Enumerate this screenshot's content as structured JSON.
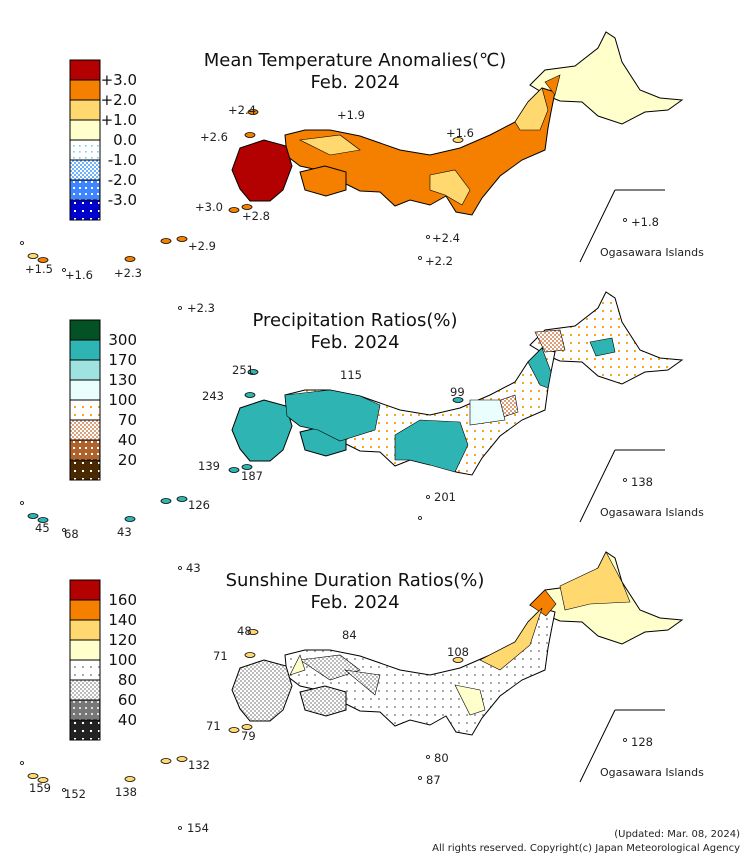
{
  "panels": [
    {
      "title_line1": "Mean Temperature Anomalies(℃)",
      "title_line2": "Feb. 2024",
      "legend": {
        "labels": [
          "+3.0",
          "+2.0",
          "+1.0",
          "0.0",
          "-1.0",
          "-2.0",
          "-3.0"
        ],
        "colors": [
          "#b30000",
          "#f58000",
          "#ffd870",
          "#ffffcc",
          "#e8f8ff",
          "#9cc8ff",
          "#3e86ff",
          "#0000cc"
        ],
        "patterns": [
          "solid",
          "solid",
          "solid",
          "solid",
          "dots-light",
          "check",
          "dots",
          "dots-dark"
        ]
      },
      "values": [
        "+2.4",
        "+1.9",
        "+2.6",
        "+1.6",
        "+3.0",
        "+2.8",
        "+1.8",
        "+2.4",
        "+2.2",
        "+2.9",
        "+1.5",
        "+1.6",
        "+2.3",
        "+2.3"
      ],
      "ogasawara": "Ogasawara Islands"
    },
    {
      "title_line1": "Precipitation Ratios(%)",
      "title_line2": "Feb. 2024",
      "legend": {
        "labels": [
          "300",
          "170",
          "130",
          "100",
          "70",
          "40",
          "20"
        ],
        "colors": [
          "#035125",
          "#2eb4b3",
          "#9fe3e0",
          "#eafffd",
          "#f5a623",
          "#d9a07a",
          "#b0622c",
          "#4a2800"
        ],
        "patterns": [
          "solid",
          "solid",
          "solid",
          "solid",
          "dots-light",
          "check",
          "dots",
          "dots-dark"
        ]
      },
      "values": [
        "251",
        "115",
        "243",
        "99",
        "139",
        "187",
        "138",
        "201",
        "126",
        "45",
        "68",
        "43",
        "43"
      ],
      "ogasawara": "Ogasawara Islands"
    },
    {
      "title_line1": "Sunshine Duration Ratios(%)",
      "title_line2": "Feb. 2024",
      "legend": {
        "labels": [
          "160",
          "140",
          "120",
          "100",
          "80",
          "60",
          "40"
        ],
        "colors": [
          "#b30000",
          "#f58000",
          "#ffd870",
          "#ffffcc",
          "#aaaaaa",
          "#bbbbbb",
          "#777777",
          "#222222"
        ],
        "patterns": [
          "solid",
          "solid",
          "solid",
          "solid",
          "dots-light",
          "check",
          "dots",
          "dots-dark"
        ]
      },
      "values": [
        "48",
        "84",
        "71",
        "108",
        "71",
        "79",
        "128",
        "80",
        "132",
        "87",
        "159",
        "152",
        "138",
        "154"
      ],
      "ogasawara": "Ogasawara Islands"
    }
  ],
  "footer": {
    "updated": "(Updated: Mar. 08, 2024)",
    "copyright": "All rights reserved. Copyright(c) Japan Meteorological Agency"
  }
}
